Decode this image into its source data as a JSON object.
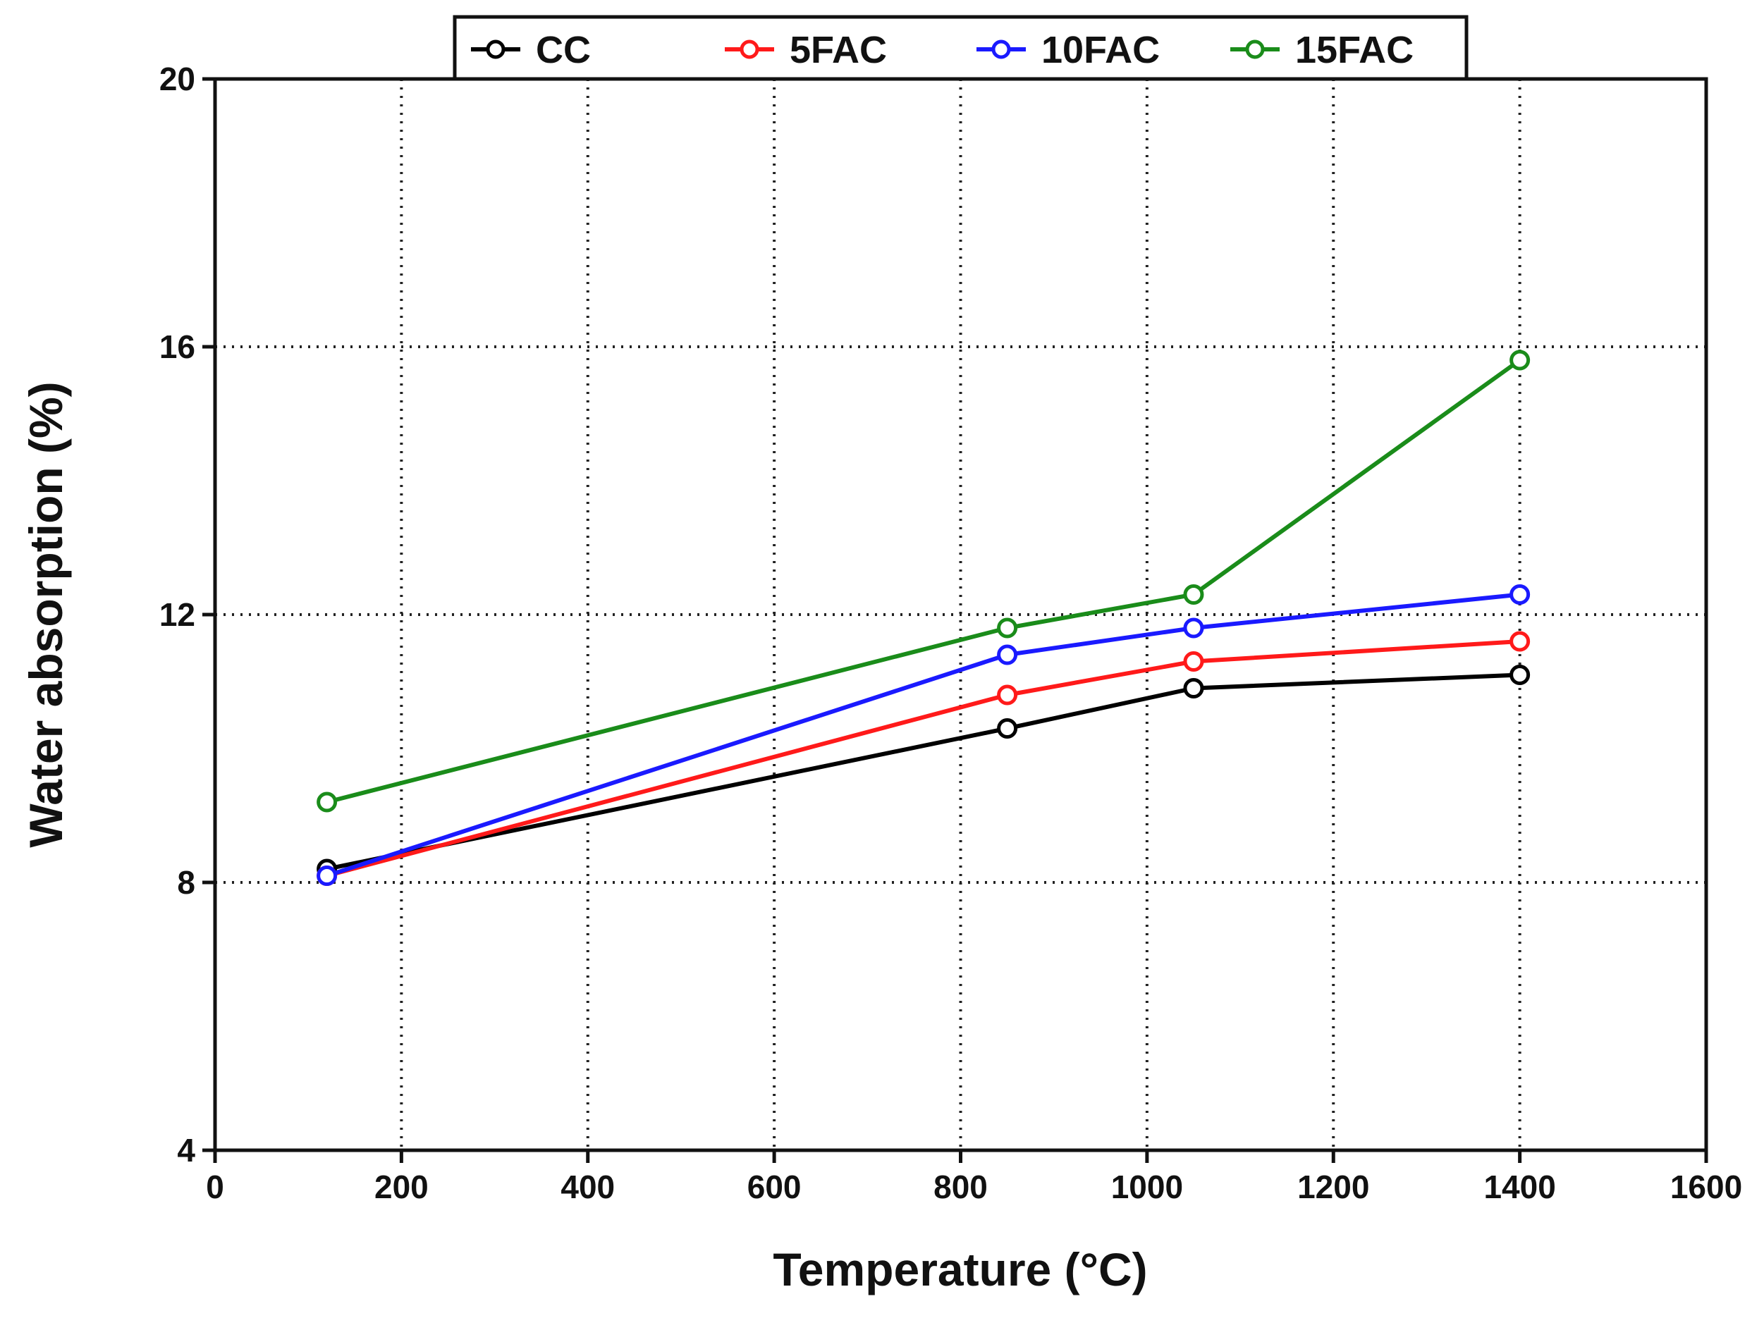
{
  "chart_data": {
    "type": "line",
    "title": "",
    "xlabel": "Temperature (°C)",
    "ylabel": "Water absorption (%)",
    "xlim": [
      0,
      1600
    ],
    "ylim": [
      4,
      20
    ],
    "xticks": [
      0,
      200,
      400,
      600,
      800,
      1000,
      1200,
      1400,
      1600
    ],
    "yticks": [
      4,
      8,
      12,
      16,
      20
    ],
    "xtick_labels": [
      "0",
      "200",
      "400",
      "600",
      "800",
      "1000",
      "1200",
      "1400",
      "1600"
    ],
    "ytick_labels": [
      "4",
      "8",
      "12",
      "16",
      "20"
    ],
    "grid": true,
    "legend_position": "top-center",
    "series": [
      {
        "name": "CC",
        "color": "#000000",
        "x": [
          120,
          850,
          1050,
          1400
        ],
        "values": [
          8.2,
          10.3,
          10.9,
          11.1
        ]
      },
      {
        "name": "5FAC",
        "color": "#ff1a1a",
        "x": [
          120,
          850,
          1050,
          1400
        ],
        "values": [
          8.1,
          10.8,
          11.3,
          11.6
        ]
      },
      {
        "name": "10FAC",
        "color": "#1a1aff",
        "x": [
          120,
          850,
          1050,
          1400
        ],
        "values": [
          8.1,
          11.4,
          11.8,
          12.3
        ]
      },
      {
        "name": "15FAC",
        "color": "#1a8c1a",
        "x": [
          120,
          850,
          1050,
          1400
        ],
        "values": [
          9.2,
          11.8,
          12.3,
          15.8
        ]
      }
    ]
  }
}
